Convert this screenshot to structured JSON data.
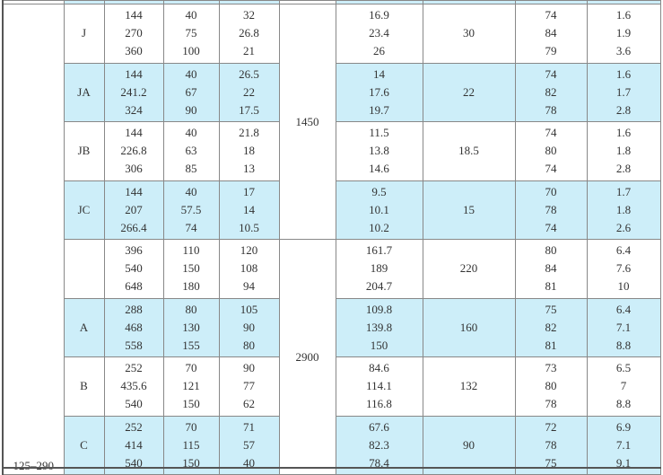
{
  "table": {
    "group_label": "125–290",
    "speeds": [
      "1450",
      "2900"
    ],
    "rows": [
      {
        "model": "J",
        "c3": [
          "144",
          "270",
          "360"
        ],
        "c4": [
          "40",
          "75",
          "100"
        ],
        "c5": [
          "32",
          "26.8",
          "21"
        ],
        "c7": [
          "16.9",
          "23.4",
          "26"
        ],
        "c8": "30",
        "c9": [
          "74",
          "84",
          "79"
        ],
        "c10": [
          "1.6",
          "1.9",
          "3.6"
        ],
        "shaded": false
      },
      {
        "model": "JA",
        "c3": [
          "144",
          "241.2",
          "324"
        ],
        "c4": [
          "40",
          "67",
          "90"
        ],
        "c5": [
          "26.5",
          "22",
          "17.5"
        ],
        "c7": [
          "14",
          "17.6",
          "19.7"
        ],
        "c8": "22",
        "c9": [
          "74",
          "82",
          "78"
        ],
        "c10": [
          "1.6",
          "1.7",
          "2.8"
        ],
        "shaded": true
      },
      {
        "model": "JB",
        "c3": [
          "144",
          "226.8",
          "306"
        ],
        "c4": [
          "40",
          "63",
          "85"
        ],
        "c5": [
          "21.8",
          "18",
          "13"
        ],
        "c7": [
          "11.5",
          "13.8",
          "14.6"
        ],
        "c8": "18.5",
        "c9": [
          "74",
          "80",
          "74"
        ],
        "c10": [
          "1.6",
          "1.8",
          "2.8"
        ],
        "shaded": false
      },
      {
        "model": "JC",
        "c3": [
          "144",
          "207",
          "266.4"
        ],
        "c4": [
          "40",
          "57.5",
          "74"
        ],
        "c5": [
          "17",
          "14",
          "10.5"
        ],
        "c7": [
          "9.5",
          "10.1",
          "10.2"
        ],
        "c8": "15",
        "c9": [
          "70",
          "78",
          "74"
        ],
        "c10": [
          "1.7",
          "1.8",
          "2.6"
        ],
        "shaded": true
      },
      {
        "model": "",
        "c3": [
          "396",
          "540",
          "648"
        ],
        "c4": [
          "110",
          "150",
          "180"
        ],
        "c5": [
          "120",
          "108",
          "94"
        ],
        "c7": [
          "161.7",
          "189",
          "204.7"
        ],
        "c8": "220",
        "c9": [
          "80",
          "84",
          "81"
        ],
        "c10": [
          "6.4",
          "7.6",
          "10"
        ],
        "shaded": false
      },
      {
        "model": "A",
        "c3": [
          "288",
          "468",
          "558"
        ],
        "c4": [
          "80",
          "130",
          "155"
        ],
        "c5": [
          "105",
          "90",
          "80"
        ],
        "c7": [
          "109.8",
          "139.8",
          "150"
        ],
        "c8": "160",
        "c9": [
          "75",
          "82",
          "81"
        ],
        "c10": [
          "6.4",
          "7.1",
          "8.8"
        ],
        "shaded": true
      },
      {
        "model": "B",
        "c3": [
          "252",
          "435.6",
          "540"
        ],
        "c4": [
          "70",
          "121",
          "150"
        ],
        "c5": [
          "90",
          "77",
          "62"
        ],
        "c7": [
          "84.6",
          "114.1",
          "116.8"
        ],
        "c8": "132",
        "c9": [
          "73",
          "80",
          "78"
        ],
        "c10": [
          "6.5",
          "7",
          "8.8"
        ],
        "shaded": false
      },
      {
        "model": "C",
        "c3": [
          "252",
          "414",
          "540"
        ],
        "c4": [
          "70",
          "115",
          "150"
        ],
        "c5": [
          "71",
          "57",
          "40"
        ],
        "c7": [
          "67.6",
          "82.3",
          "78.4"
        ],
        "c8": "90",
        "c9": [
          "72",
          "78",
          "75"
        ],
        "c10": [
          "6.9",
          "7.1",
          "9.1"
        ],
        "shaded": true
      }
    ]
  },
  "colors": {
    "shade": "#cdeef9",
    "border": "#888888"
  }
}
